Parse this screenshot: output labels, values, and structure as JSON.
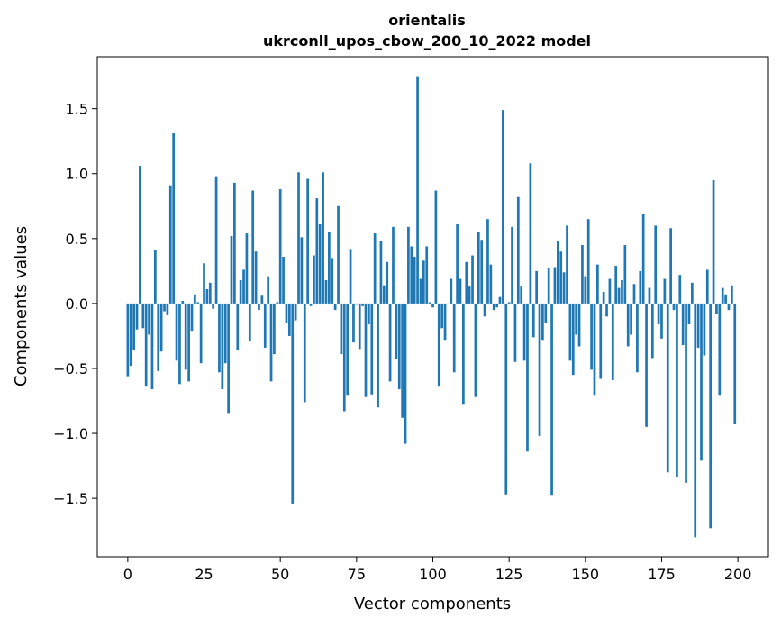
{
  "chart_data": {
    "type": "bar",
    "title": "orientalis",
    "subtitle": "ukrconll_upos_cbow_200_10_2022 model",
    "xlabel": "Vector components",
    "ylabel": "Components values",
    "xlim": [
      -10,
      210
    ],
    "ylim": [
      -1.95,
      1.9
    ],
    "xticks": [
      0,
      25,
      50,
      75,
      100,
      125,
      150,
      175,
      200
    ],
    "yticks": [
      -1.5,
      -1.0,
      -0.5,
      0.0,
      0.5,
      1.0,
      1.5
    ],
    "xtick_labels": [
      "0",
      "25",
      "50",
      "75",
      "100",
      "125",
      "150",
      "175",
      "200"
    ],
    "ytick_labels": [
      "−1.5",
      "−1.0",
      "−0.5",
      "0.0",
      "0.5",
      "1.0",
      "1.5"
    ],
    "bar_color": "#1f77b4",
    "values": [
      -0.56,
      -0.48,
      -0.36,
      -0.2,
      1.06,
      -0.19,
      -0.64,
      -0.24,
      -0.66,
      0.41,
      -0.52,
      -0.37,
      -0.06,
      -0.09,
      0.91,
      1.31,
      -0.44,
      -0.62,
      0.02,
      -0.51,
      -0.6,
      -0.21,
      0.07,
      0.01,
      -0.46,
      0.31,
      0.11,
      0.16,
      -0.04,
      0.98,
      -0.53,
      -0.66,
      -0.46,
      -0.85,
      0.52,
      0.93,
      -0.36,
      0.18,
      0.26,
      0.54,
      -0.29,
      0.87,
      0.4,
      -0.05,
      0.06,
      -0.34,
      0.21,
      -0.6,
      -0.39,
      0.01,
      0.88,
      0.36,
      -0.15,
      -0.25,
      -1.54,
      -0.13,
      1.01,
      0.51,
      -0.76,
      0.96,
      -0.02,
      0.37,
      0.81,
      0.61,
      1.01,
      0.18,
      0.55,
      0.35,
      -0.05,
      0.75,
      -0.39,
      -0.83,
      -0.71,
      0.42,
      -0.3,
      -0.01,
      -0.35,
      -0.02,
      -0.72,
      -0.16,
      -0.7,
      0.54,
      -0.8,
      0.48,
      0.14,
      0.32,
      -0.6,
      0.59,
      -0.43,
      -0.66,
      -0.88,
      -1.08,
      0.59,
      0.44,
      0.36,
      1.75,
      0.19,
      0.33,
      0.44,
      0.01,
      -0.03,
      0.87,
      -0.64,
      -0.19,
      -0.28,
      0.0,
      0.19,
      -0.53,
      0.61,
      0.19,
      -0.78,
      0.32,
      0.13,
      0.37,
      -0.72,
      0.55,
      0.49,
      -0.1,
      0.65,
      0.3,
      -0.05,
      -0.03,
      0.05,
      1.49,
      -1.47,
      0.01,
      0.59,
      -0.45,
      0.82,
      0.13,
      -0.44,
      -1.14,
      1.08,
      -0.26,
      0.25,
      -1.02,
      -0.28,
      -0.15,
      0.27,
      -1.48,
      0.28,
      0.48,
      0.4,
      0.24,
      0.6,
      -0.44,
      -0.55,
      -0.24,
      -0.33,
      0.45,
      0.21,
      0.65,
      -0.51,
      -0.71,
      0.3,
      -0.58,
      0.09,
      -0.1,
      0.19,
      -0.59,
      0.29,
      0.12,
      0.18,
      0.45,
      -0.33,
      -0.24,
      0.15,
      -0.53,
      0.25,
      0.69,
      -0.95,
      0.12,
      -0.42,
      0.6,
      -0.16,
      -0.27,
      0.19,
      -1.3,
      0.58,
      -0.05,
      -1.34,
      0.22,
      -0.32,
      -1.38,
      -0.16,
      0.16,
      -1.8,
      -0.34,
      -1.21,
      -0.4,
      0.26,
      -1.73,
      0.95,
      -0.08,
      -0.71,
      0.12,
      0.07,
      -0.05,
      0.14,
      -0.93
    ]
  }
}
